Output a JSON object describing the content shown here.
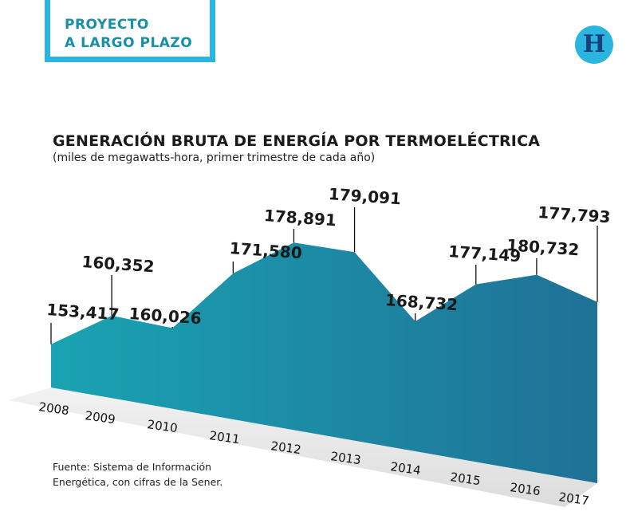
{
  "header": {
    "badge_line1": "PROYECTO",
    "badge_line2": "A LARGO PLAZO",
    "logo_letter": "H",
    "logo_icon": "heraldo-h-logo-icon"
  },
  "chart_data": {
    "type": "area",
    "title": "GENERACIÓN BRUTA DE ENERGÍA POR TERMOELÉCTRICA",
    "subtitle": "(miles de megawatts-hora, primer trimestre de cada año)",
    "categories": [
      "2008",
      "2009",
      "2010",
      "2011",
      "2012",
      "2013",
      "2014",
      "2015",
      "2016",
      "2017"
    ],
    "values": [
      153417,
      160352,
      160026,
      171580,
      178891,
      179091,
      168732,
      177149,
      180732,
      177793
    ],
    "value_labels": [
      "153,417",
      "160,352",
      "160,026",
      "171,580",
      "178,891",
      "179,091",
      "168,732",
      "177,149",
      "180,732",
      "177,793"
    ],
    "colors": {
      "area_start": "#1aa3b2",
      "area_end": "#1f7196",
      "floor": "#dcdcdc",
      "labels": "#1a1a1a"
    },
    "grid": false,
    "legend": "none"
  },
  "footer": {
    "source_line1": "Fuente: Sistema de Información",
    "source_line2": "Energética, con cifras de la Sener."
  }
}
